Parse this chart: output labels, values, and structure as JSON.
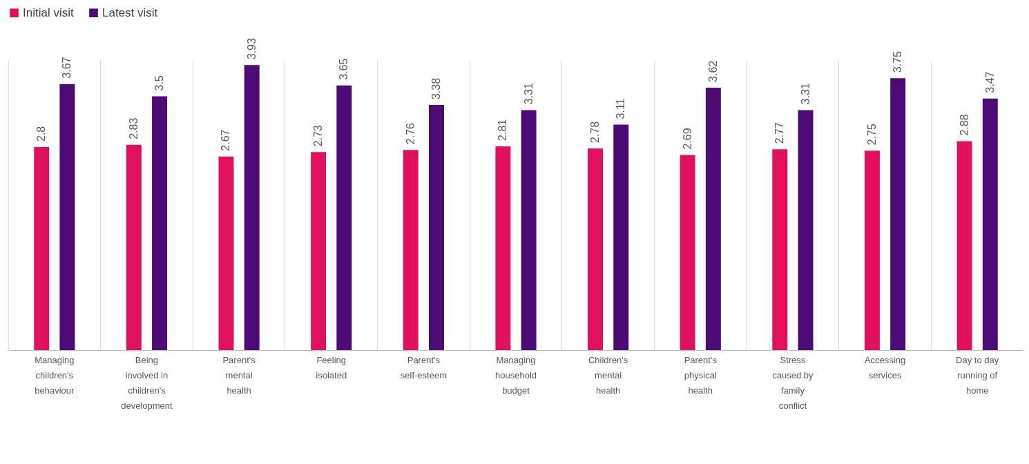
{
  "chart_data": {
    "type": "bar",
    "categories": [
      "Managing children's behaviour",
      "Being involved in children's development",
      "Parent's mental health",
      "Feeling isolated",
      "Parent's self-esteem",
      "Managing household budget",
      "Children's mental health",
      "Parent's physical health",
      "Stress caused by family conflict",
      "Accessing services",
      "Day to day running of home"
    ],
    "series": [
      {
        "name": "Initial visit",
        "color": "#e0105f",
        "values": [
          2.8,
          2.83,
          2.67,
          2.73,
          2.76,
          2.81,
          2.78,
          2.69,
          2.77,
          2.75,
          2.88
        ]
      },
      {
        "name": "Latest visit",
        "color": "#4b0a75",
        "values": [
          3.67,
          3.5,
          3.93,
          3.65,
          3.38,
          3.31,
          3.11,
          3.62,
          3.31,
          3.75,
          3.47
        ]
      }
    ],
    "data_labels": true,
    "grid": "x",
    "legend": "top"
  }
}
